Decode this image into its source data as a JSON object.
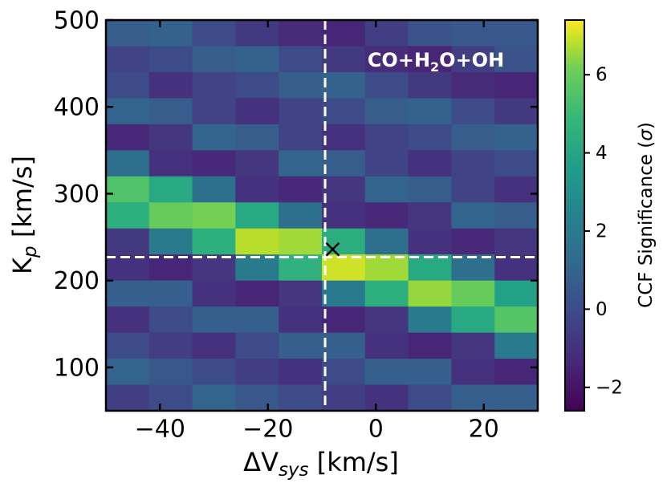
{
  "chart_data": {
    "type": "heatmap",
    "annotation": [
      "CO+H",
      "2",
      "O+OH"
    ],
    "xlabel": [
      "ΔV",
      "sys",
      " [km/s]"
    ],
    "ylabel": [
      "K",
      "p",
      " [km/s]"
    ],
    "colorbar_label": [
      "CCF Significance (",
      "σ",
      ")"
    ],
    "colormap": "viridis",
    "xlim": [
      -50,
      30
    ],
    "ylim": [
      50,
      500
    ],
    "clim": [
      -2.6,
      7.4
    ],
    "xticks": [
      {
        "value": -40,
        "label": "−40"
      },
      {
        "value": -20,
        "label": "−20"
      },
      0,
      20
    ],
    "yticks": [
      100,
      200,
      300,
      400,
      500
    ],
    "cticks": [
      {
        "value": -2,
        "label": "−2"
      },
      0,
      2,
      4,
      6
    ],
    "x_edges": [
      -50,
      -42,
      -34,
      -26,
      -18,
      -10,
      -2,
      6,
      14,
      22,
      30
    ],
    "y_edges": [
      500,
      470,
      440,
      410,
      380,
      350,
      320,
      290,
      260,
      230,
      200,
      170,
      140,
      110,
      80,
      50
    ],
    "z": [
      [
        0.7,
        0.9,
        0,
        -0.7,
        -1.2,
        -1.4,
        -0.5,
        0.3,
        0.5,
        0.5
      ],
      [
        -0.3,
        0,
        0.7,
        0.9,
        0,
        -0.7,
        -1.2,
        -1.4,
        -0.5,
        0.3
      ],
      [
        0,
        -1,
        -0.3,
        0,
        0.7,
        0.9,
        0,
        -0.7,
        -1.2,
        -1.4
      ],
      [
        1,
        0.7,
        -0.3,
        -1,
        -0.3,
        0,
        0.7,
        0.9,
        0,
        -0.7
      ],
      [
        -1.3,
        -0.8,
        1,
        0.7,
        -0.3,
        -1,
        -0.3,
        0,
        0.7,
        0.9
      ],
      [
        1.5,
        -1,
        -1.3,
        -0.8,
        1,
        0.7,
        -0.3,
        -1,
        -0.3,
        0
      ],
      [
        5.5,
        4.2,
        1.5,
        -1,
        -1.3,
        -0.8,
        1,
        0.7,
        -0.3,
        -1
      ],
      [
        4.5,
        6,
        6.2,
        4.2,
        1.5,
        -1,
        -1.3,
        -0.8,
        1,
        0.7
      ],
      [
        -0.7,
        2,
        4.5,
        6.8,
        6.6,
        4.4,
        1.5,
        -1,
        -1.3,
        -0.8
      ],
      [
        -1,
        -1.4,
        -0.8,
        2,
        4.6,
        7,
        6.6,
        4.2,
        1.5,
        -1
      ],
      [
        0.8,
        0.8,
        -1,
        -1.4,
        -0.8,
        2,
        4.5,
        6.5,
        6,
        3.8
      ],
      [
        -1,
        0,
        0.8,
        0.8,
        -1,
        -1.4,
        -0.8,
        2,
        4.2,
        5.6
      ],
      [
        0,
        -0.5,
        -1,
        0,
        0.8,
        0.8,
        -1,
        -1.4,
        -0.8,
        2
      ],
      [
        1,
        0.5,
        0,
        -0.5,
        -1,
        0,
        0.8,
        0.8,
        -1,
        -1.4
      ],
      [
        -0.5,
        0,
        1,
        0.5,
        0,
        -0.5,
        -1,
        0,
        0.8,
        0.8
      ]
    ],
    "vline": -9.4,
    "hline": 227,
    "marker": [
      -8,
      236
    ]
  }
}
